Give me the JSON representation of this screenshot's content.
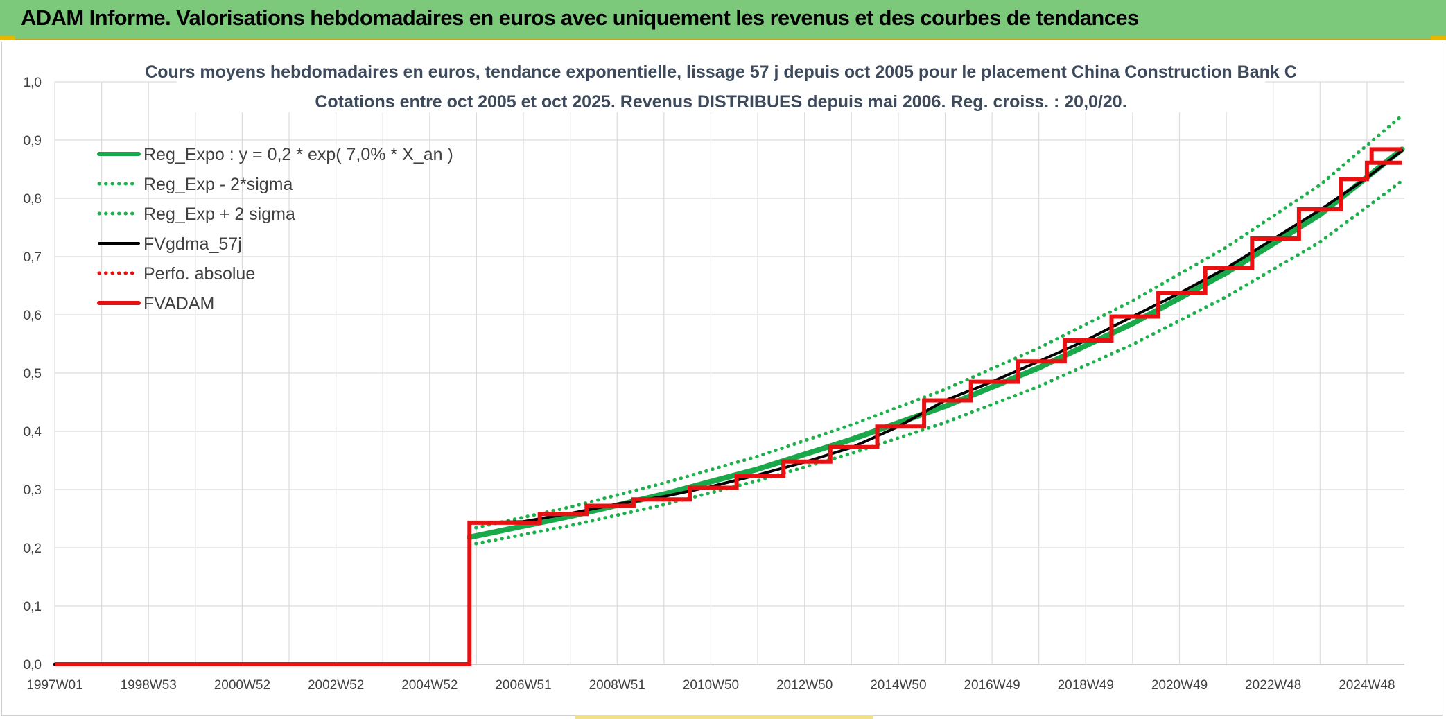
{
  "header": {
    "title": "ADAM Informe. Valorisations hebdomadaires en euros avec uniquement les revenus et des courbes de tendances"
  },
  "colors": {
    "header_bg": "#7dc97c",
    "reg_expo": "#19a94a",
    "sigma": "#1db04c",
    "fvgdma": "#000000",
    "perfo": "#e81010",
    "fvadam": "#e81010",
    "grid": "#dcdcdc"
  },
  "chart_data": {
    "type": "line",
    "title": "Cours moyens hebdomadaires en euros, tendance exponentielle, lissage 57 j depuis oct 2005 pour le placement China Construction Bank C",
    "subtitle": "Cotations entre oct 2005 et oct 2025. Revenus DISTRIBUES depuis mai 2006. Reg. croiss. : 20,0/20.",
    "xlabel": "",
    "ylabel": "",
    "ylim": [
      0,
      1.0
    ],
    "xlim": [
      1997.0,
      2025.8
    ],
    "grid": true,
    "legend_position": "top-left",
    "y_ticks": [
      "0,0",
      "0,1",
      "0,2",
      "0,3",
      "0,4",
      "0,5",
      "0,6",
      "0,7",
      "0,8",
      "0,9",
      "1,0"
    ],
    "x_tick_labels": [
      "1997W01",
      "1998W53",
      "2000W52",
      "2002W52",
      "2004W52",
      "2006W51",
      "2008W51",
      "2010W50",
      "2012W50",
      "2014W50",
      "2016W49",
      "2018W49",
      "2020W49",
      "2022W48",
      "2024W48"
    ],
    "x_tick_positions": [
      1997.0,
      1999.0,
      2001.0,
      2003.0,
      2005.0,
      2007.0,
      2009.0,
      2011.0,
      2013.0,
      2015.0,
      2017.0,
      2019.0,
      2021.0,
      2023.0,
      2025.0
    ],
    "series": [
      {
        "name": "Reg_Expo : y = 0,2 * exp( 7,0% *  X_an )",
        "style": "solid-thick",
        "color": "#19a94a",
        "x": [
          2005.85,
          2008.0,
          2010.0,
          2012.0,
          2014.0,
          2016.0,
          2018.0,
          2020.0,
          2022.0,
          2024.0,
          2025.75
        ],
        "y": [
          0.218,
          0.254,
          0.292,
          0.335,
          0.386,
          0.443,
          0.509,
          0.585,
          0.672,
          0.772,
          0.884
        ]
      },
      {
        "name": "Reg_Exp - 2*sigma",
        "style": "dotted",
        "color": "#1db04c",
        "x": [
          2005.85,
          2008.0,
          2010.0,
          2012.0,
          2014.0,
          2016.0,
          2018.0,
          2020.0,
          2022.0,
          2024.0,
          2025.75
        ],
        "y": [
          0.205,
          0.238,
          0.274,
          0.315,
          0.362,
          0.415,
          0.477,
          0.549,
          0.631,
          0.725,
          0.83
        ]
      },
      {
        "name": "Reg_Exp + 2 sigma",
        "style": "dotted",
        "color": "#1db04c",
        "x": [
          2005.85,
          2008.0,
          2010.0,
          2012.0,
          2014.0,
          2016.0,
          2018.0,
          2020.0,
          2022.0,
          2024.0,
          2025.75
        ],
        "y": [
          0.232,
          0.27,
          0.311,
          0.357,
          0.411,
          0.472,
          0.543,
          0.624,
          0.716,
          0.823,
          0.942
        ]
      },
      {
        "name": "FVgdma_57j",
        "style": "solid",
        "color": "#000000",
        "x": [
          1997.0,
          2005.85,
          2005.86,
          2007.0,
          2008.0,
          2009.0,
          2010.0,
          2011.0,
          2012.0,
          2013.0,
          2014.0,
          2015.0,
          2016.0,
          2017.0,
          2018.0,
          2019.0,
          2020.0,
          2021.0,
          2022.0,
          2023.0,
          2024.0,
          2025.0,
          2025.75
        ],
        "y": [
          0.0,
          0.0,
          0.243,
          0.245,
          0.259,
          0.275,
          0.288,
          0.305,
          0.325,
          0.347,
          0.372,
          0.408,
          0.453,
          0.485,
          0.52,
          0.556,
          0.597,
          0.637,
          0.68,
          0.73,
          0.78,
          0.835,
          0.882
        ]
      },
      {
        "name": "Perfo. absolue",
        "style": "dotted",
        "color": "#e81010",
        "x": [
          1997.0,
          2005.85
        ],
        "y": [
          0.0,
          0.0
        ]
      },
      {
        "name": "FVADAM",
        "style": "step-thick",
        "color": "#e81010",
        "x": [
          1997.0,
          2005.85,
          2005.85,
          2007.35,
          2007.35,
          2008.35,
          2008.35,
          2009.35,
          2009.35,
          2010.55,
          2010.55,
          2011.55,
          2011.55,
          2012.55,
          2012.55,
          2013.55,
          2013.55,
          2014.55,
          2014.55,
          2015.55,
          2015.55,
          2016.55,
          2016.55,
          2017.55,
          2017.55,
          2018.55,
          2018.55,
          2019.55,
          2019.55,
          2020.55,
          2020.55,
          2021.55,
          2021.55,
          2022.55,
          2022.55,
          2023.55,
          2023.55,
          2024.45,
          2024.45,
          2025.0,
          2025.0,
          2025.75
        ],
        "y": [
          0.0,
          0.0,
          0.243,
          0.243,
          0.258,
          0.258,
          0.272,
          0.272,
          0.283,
          0.283,
          0.303,
          0.303,
          0.323,
          0.323,
          0.348,
          0.348,
          0.373,
          0.373,
          0.408,
          0.408,
          0.453,
          0.453,
          0.485,
          0.485,
          0.52,
          0.52,
          0.556,
          0.556,
          0.597,
          0.597,
          0.637,
          0.637,
          0.68,
          0.68,
          0.731,
          0.731,
          0.781,
          0.781,
          0.833,
          0.833,
          0.861,
          0.861
        ]
      },
      {
        "name": "FVADAM-end",
        "legend": false,
        "style": "step-thick",
        "color": "#e81010",
        "x": [
          2025.1,
          2025.1,
          2025.75
        ],
        "y": [
          0.861,
          0.884,
          0.884
        ]
      }
    ]
  }
}
